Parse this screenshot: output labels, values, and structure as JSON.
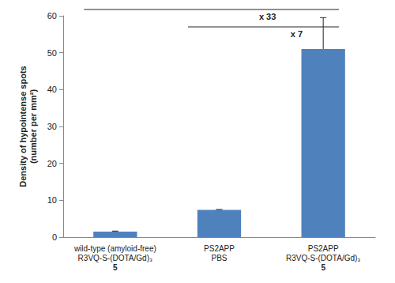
{
  "chart_data": {
    "type": "bar",
    "categories": [
      "wild-type (amyloid-free)\nR3VQ-S-(DOTA/Gd)₃\n5",
      "PS2APP\nPBS",
      "PS2APP\nR3VQ-S-(DOTA/Gd)₃\n5"
    ],
    "values": [
      1.5,
      7.4,
      51
    ],
    "errors": [
      0.15,
      0.1,
      8.5
    ],
    "color": "#4f81bd",
    "ylabel": "Density of hypointense spots\n(number per mm²)",
    "ylim": [
      0,
      60
    ],
    "yticks": [
      0,
      10,
      20,
      30,
      40,
      50,
      60
    ],
    "grid": false,
    "annotations": [
      {
        "text": "x 33",
        "from": 0,
        "to": 2
      },
      {
        "text": "x 7",
        "from": 1,
        "to": 2
      }
    ]
  }
}
